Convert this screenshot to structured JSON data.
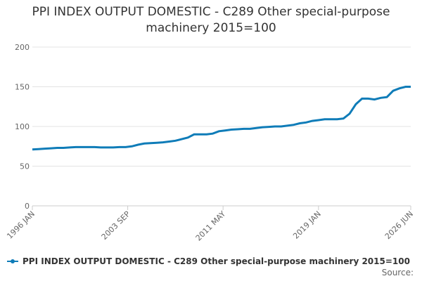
{
  "chart_data": {
    "type": "line",
    "title": "PPI INDEX OUTPUT DOMESTIC - C289 Other special-purpose machinery 2015=100",
    "x": [
      "1996 JAN",
      "1996 JUL",
      "1997 JAN",
      "1997 JUL",
      "1998 JAN",
      "1998 JUL",
      "1999 JAN",
      "1999 JUL",
      "2000 JAN",
      "2000 JUL",
      "2001 JAN",
      "2001 JUL",
      "2002 JAN",
      "2002 JUL",
      "2003 JAN",
      "2003 JUL",
      "2004 JAN",
      "2004 JUL",
      "2005 JAN",
      "2005 JUL",
      "2006 JAN",
      "2006 JUL",
      "2007 JAN",
      "2007 JUL",
      "2008 JAN",
      "2008 JUL",
      "2009 JAN",
      "2009 JUL",
      "2010 JAN",
      "2010 JUL",
      "2011 JAN",
      "2011 JUL",
      "2012 JAN",
      "2012 JUL",
      "2013 JAN",
      "2013 JUL",
      "2014 JAN",
      "2014 JUL",
      "2015 JAN",
      "2015 JUL",
      "2016 JAN",
      "2016 JUL",
      "2017 JAN",
      "2017 JUL",
      "2018 JAN",
      "2018 JUL",
      "2019 JAN",
      "2019 JUL",
      "2020 JAN",
      "2020 JUL",
      "2021 JAN",
      "2021 JUL",
      "2022 JAN",
      "2022 JUL",
      "2023 JAN",
      "2023 JUL",
      "2024 JAN",
      "2024 JUL",
      "2025 JAN",
      "2025 JUL",
      "2026 JAN",
      "2026 JUN"
    ],
    "series": [
      {
        "name": "PPI INDEX OUTPUT DOMESTIC - C289 Other special-purpose machinery 2015=100",
        "color": "#0f7cb8",
        "values": [
          71,
          71.5,
          72,
          72.5,
          73,
          73,
          73.5,
          74,
          74,
          74,
          74,
          73.5,
          73.5,
          73.5,
          74,
          74,
          75,
          77,
          78.5,
          79,
          79.5,
          80,
          81,
          82,
          84,
          86,
          90,
          90,
          90,
          91,
          94,
          95,
          96,
          96.5,
          97,
          97,
          98,
          99,
          99.5,
          100,
          100,
          101,
          102,
          104,
          105,
          107,
          108,
          109,
          109,
          109,
          110,
          116,
          128,
          135,
          135,
          134,
          136,
          137,
          145,
          148,
          150,
          150
        ]
      }
    ],
    "xticks": [
      "1996 JAN",
      "2003 SEP",
      "2011 MAY",
      "2019 JAN",
      "2026 JUN"
    ],
    "ylim": [
      0,
      200
    ],
    "yticks": [
      0,
      50,
      100,
      150,
      200
    ],
    "grid": true,
    "source": "Source:"
  }
}
